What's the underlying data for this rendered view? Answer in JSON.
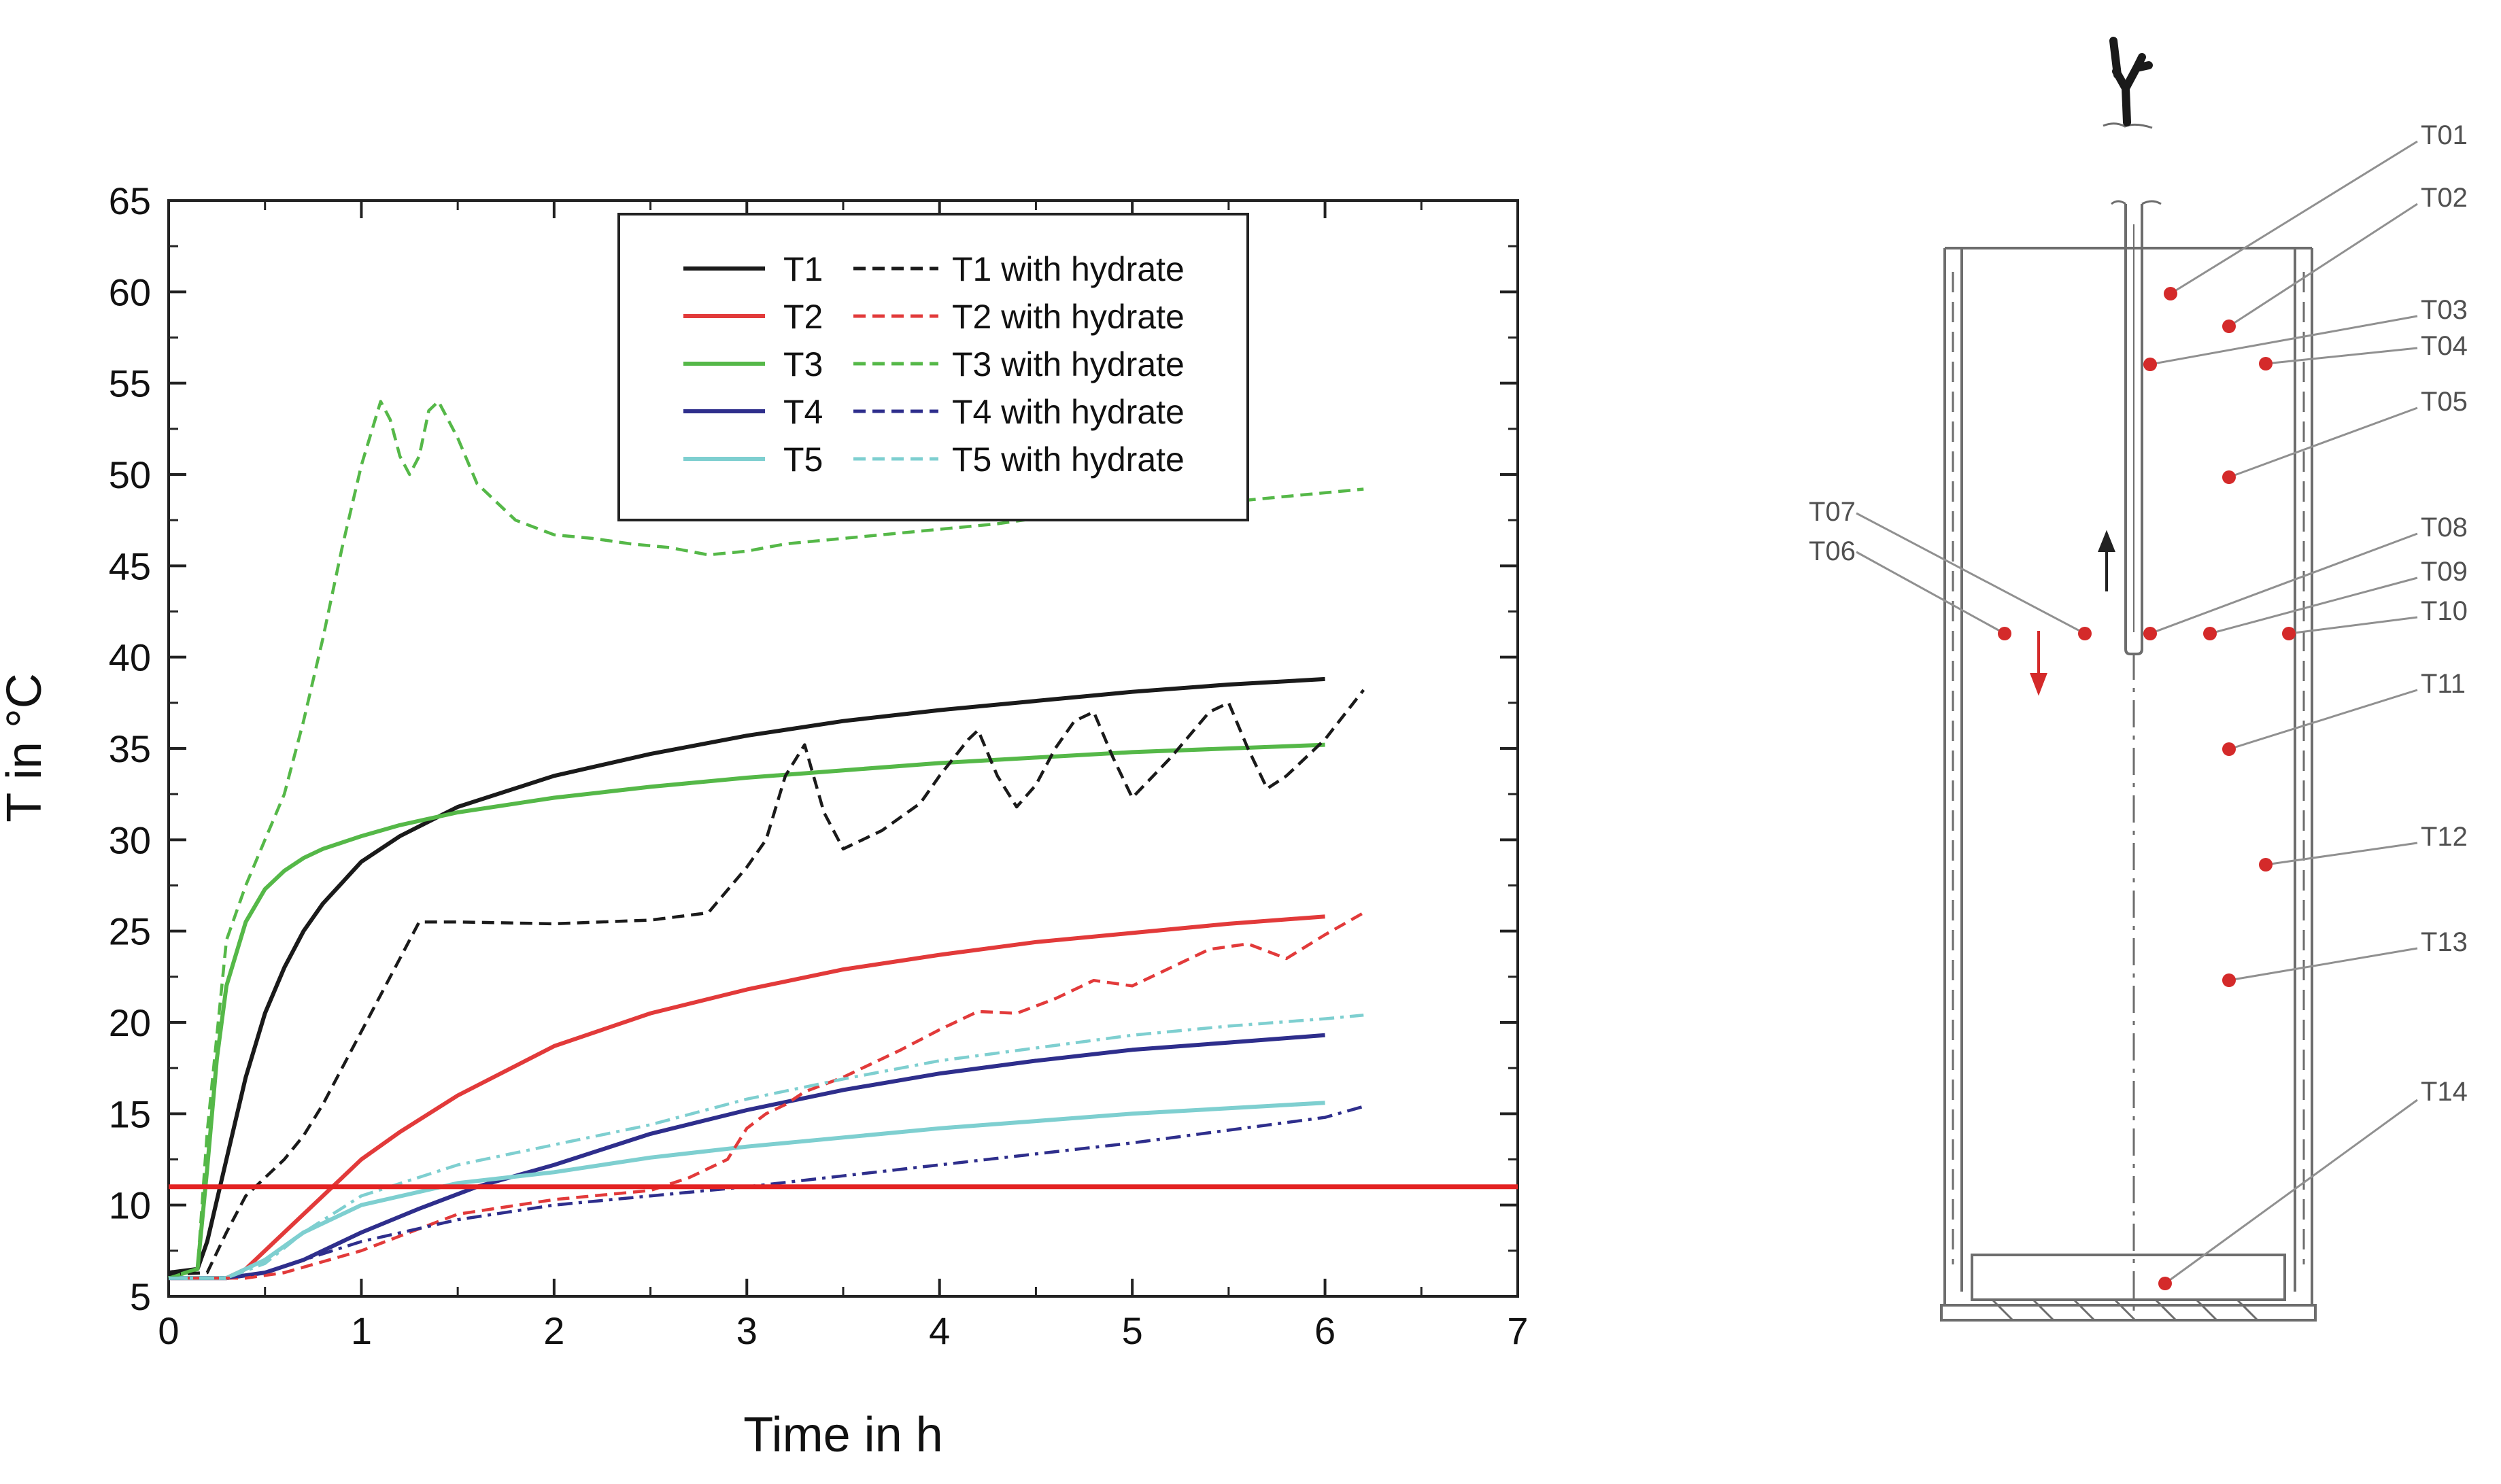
{
  "chart_data": {
    "type": "line",
    "title": "",
    "xlabel": "Time in h",
    "ylabel": "T in °C",
    "xlim": [
      0,
      7
    ],
    "ylim": [
      5,
      65
    ],
    "xticks": [
      0,
      1,
      2,
      3,
      4,
      5,
      6,
      7
    ],
    "yticks": [
      5,
      10,
      15,
      20,
      25,
      30,
      35,
      40,
      45,
      50,
      55,
      60,
      65
    ],
    "grid": false,
    "legend_position": "top-center",
    "legend": [
      {
        "id": "t1",
        "label": "T1",
        "dashed_label": "T1 with hydrate",
        "color": "#1a1a1a"
      },
      {
        "id": "t2",
        "label": "T2",
        "dashed_label": "T2 with hydrate",
        "color": "#e23a3a"
      },
      {
        "id": "t3",
        "label": "T3",
        "dashed_label": "T3 with hydrate",
        "color": "#55b848"
      },
      {
        "id": "t4",
        "label": "T4",
        "dashed_label": "T4 with hydrate",
        "color": "#2e2e8c"
      },
      {
        "id": "t5",
        "label": "T5",
        "dashed_label": "T5 with hydrate",
        "color": "#7ecfd0"
      }
    ],
    "reference_line": {
      "y": 11,
      "color": "#e32222"
    },
    "series": [
      {
        "name": "T1",
        "color": "#1a1a1a",
        "style": "solid",
        "x": [
          0,
          0.15,
          0.2,
          0.3,
          0.4,
          0.5,
          0.6,
          0.7,
          0.8,
          1.0,
          1.2,
          1.5,
          2.0,
          2.5,
          3.0,
          3.5,
          4.0,
          4.5,
          5.0,
          5.5,
          6.0
        ],
        "y": [
          6.3,
          6.5,
          8,
          12.5,
          17,
          20.5,
          23,
          25,
          26.5,
          28.8,
          30.2,
          31.8,
          33.5,
          34.7,
          35.7,
          36.5,
          37.1,
          37.6,
          38.1,
          38.5,
          38.8
        ]
      },
      {
        "name": "T2",
        "color": "#e23a3a",
        "style": "solid",
        "x": [
          0,
          0.3,
          0.4,
          0.5,
          0.7,
          0.9,
          1.0,
          1.2,
          1.5,
          2.0,
          2.5,
          3.0,
          3.5,
          4.0,
          4.5,
          5.0,
          5.5,
          6.0
        ],
        "y": [
          6,
          6,
          6.5,
          7.5,
          9.5,
          11.5,
          12.5,
          14,
          16,
          18.7,
          20.5,
          21.8,
          22.9,
          23.7,
          24.4,
          24.9,
          25.4,
          25.8
        ]
      },
      {
        "name": "T3",
        "color": "#55b848",
        "style": "solid",
        "x": [
          0,
          0.15,
          0.2,
          0.25,
          0.3,
          0.4,
          0.5,
          0.6,
          0.7,
          0.8,
          1.0,
          1.2,
          1.5,
          2.0,
          2.5,
          3.0,
          3.5,
          4.0,
          4.5,
          5.0,
          5.5,
          6.0
        ],
        "y": [
          6,
          6.5,
          12,
          18,
          22,
          25.5,
          27.3,
          28.3,
          29,
          29.5,
          30.2,
          30.8,
          31.5,
          32.3,
          32.9,
          33.4,
          33.8,
          34.2,
          34.5,
          34.8,
          35.0,
          35.2
        ]
      },
      {
        "name": "T4",
        "color": "#2e2e8c",
        "style": "solid",
        "x": [
          0,
          0.3,
          0.5,
          0.7,
          1.0,
          1.3,
          1.6,
          2.0,
          2.5,
          3.0,
          3.5,
          4.0,
          4.5,
          5.0,
          5.5,
          6.0
        ],
        "y": [
          6,
          6,
          6.3,
          7,
          8.5,
          9.8,
          11,
          12.2,
          13.9,
          15.2,
          16.3,
          17.2,
          17.9,
          18.5,
          18.9,
          19.3
        ]
      },
      {
        "name": "T5",
        "color": "#7ecfd0",
        "style": "solid",
        "x": [
          0,
          0.3,
          0.5,
          0.7,
          1.0,
          1.5,
          2.0,
          2.5,
          3.0,
          3.5,
          4.0,
          4.5,
          5.0,
          5.5,
          6.0
        ],
        "y": [
          6,
          6,
          7,
          8.5,
          10,
          11.2,
          11.8,
          12.6,
          13.2,
          13.7,
          14.2,
          14.6,
          15.0,
          15.3,
          15.6
        ]
      },
      {
        "name": "T1 with hydrate",
        "color": "#1a1a1a",
        "style": "dashed",
        "x": [
          0,
          0.2,
          0.3,
          0.4,
          0.5,
          0.6,
          0.7,
          0.8,
          1.0,
          1.2,
          1.3,
          1.5,
          2.0,
          2.5,
          2.8,
          3.0,
          3.1,
          3.2,
          3.3,
          3.4,
          3.5,
          3.7,
          3.9,
          4.0,
          4.15,
          4.2,
          4.3,
          4.4,
          4.5,
          4.6,
          4.7,
          4.8,
          4.9,
          5.0,
          5.2,
          5.4,
          5.5,
          5.6,
          5.7,
          5.8,
          6.0,
          6.2
        ],
        "y": [
          6.2,
          6.3,
          8.5,
          10.5,
          11.5,
          12.5,
          13.8,
          15.5,
          19.5,
          23.5,
          25.5,
          25.5,
          25.4,
          25.6,
          26,
          28.5,
          30,
          33.5,
          35.2,
          31.5,
          29.5,
          30.5,
          32,
          33.5,
          35.5,
          36,
          33.5,
          31.8,
          33,
          35,
          36.5,
          37,
          34.5,
          32.3,
          34.5,
          37,
          37.5,
          35,
          32.8,
          33.5,
          35.5,
          38.2
        ]
      },
      {
        "name": "T2 with hydrate",
        "color": "#e23a3a",
        "style": "dashed",
        "x": [
          0,
          0.4,
          0.6,
          1.0,
          1.5,
          2.0,
          2.5,
          2.7,
          2.9,
          3.0,
          3.1,
          3.2,
          3.3,
          3.5,
          3.8,
          4.0,
          4.2,
          4.4,
          4.6,
          4.8,
          5.0,
          5.2,
          5.4,
          5.6,
          5.8,
          6.0,
          6.2
        ],
        "y": [
          6,
          6,
          6.3,
          7.5,
          9.5,
          10.3,
          10.8,
          11.5,
          12.5,
          14.2,
          15,
          15.5,
          16.2,
          17,
          18.5,
          19.6,
          20.6,
          20.5,
          21.3,
          22.3,
          22,
          23,
          24,
          24.3,
          23.5,
          24.8,
          26
        ]
      },
      {
        "name": "T3 with hydrate",
        "color": "#55b848",
        "style": "dashed",
        "x": [
          0,
          0.15,
          0.2,
          0.3,
          0.4,
          0.5,
          0.6,
          0.7,
          0.8,
          0.9,
          1.0,
          1.1,
          1.15,
          1.2,
          1.25,
          1.3,
          1.35,
          1.4,
          1.45,
          1.5,
          1.6,
          1.7,
          1.8,
          2.0,
          2.2,
          2.4,
          2.6,
          2.8,
          3.0,
          3.2,
          3.5,
          3.8,
          4.0,
          4.3,
          4.5,
          5.0,
          5.5,
          5.8,
          6.0,
          6.2
        ],
        "y": [
          6,
          6.5,
          14,
          24.5,
          27.5,
          30,
          32.5,
          36.5,
          41,
          46,
          50.5,
          54,
          53,
          51,
          50,
          51,
          53.5,
          54,
          53,
          52,
          49.5,
          48.5,
          47.5,
          46.7,
          46.5,
          46.2,
          46,
          45.6,
          45.8,
          46.2,
          46.5,
          46.8,
          47,
          47.3,
          47.6,
          48,
          48.5,
          48.8,
          49,
          49.2
        ]
      },
      {
        "name": "T4 with hydrate",
        "color": "#2e2e8c",
        "style": "dashdot",
        "x": [
          0,
          0.3,
          0.5,
          0.7,
          1.0,
          1.5,
          2.0,
          2.5,
          3.0,
          3.5,
          4.0,
          4.5,
          5.0,
          5.5,
          6.0,
          6.2
        ],
        "y": [
          6,
          6,
          6.3,
          7,
          8,
          9.2,
          10.0,
          10.5,
          11.0,
          11.6,
          12.2,
          12.8,
          13.4,
          14.1,
          14.8,
          15.4
        ]
      },
      {
        "name": "T5 with hydrate",
        "color": "#7ecfd0",
        "style": "dashdot",
        "x": [
          0,
          0.3,
          0.5,
          0.7,
          1.0,
          1.5,
          2.0,
          2.5,
          3.0,
          3.5,
          4.0,
          4.5,
          5.0,
          5.5,
          6.0,
          6.2
        ],
        "y": [
          6,
          6,
          6.8,
          8.5,
          10.5,
          12.2,
          13.3,
          14.4,
          15.8,
          16.9,
          17.9,
          18.6,
          19.3,
          19.8,
          20.2,
          20.4
        ]
      }
    ]
  },
  "diagram": {
    "sensors": [
      {
        "label": "T01"
      },
      {
        "label": "T02"
      },
      {
        "label": "T03"
      },
      {
        "label": "T04"
      },
      {
        "label": "T05"
      },
      {
        "label": "T06"
      },
      {
        "label": "T07"
      },
      {
        "label": "T08"
      },
      {
        "label": "T09"
      },
      {
        "label": "T10"
      },
      {
        "label": "T11"
      },
      {
        "label": "T12"
      },
      {
        "label": "T13"
      },
      {
        "label": "T14"
      }
    ],
    "colors": {
      "sensor": "#d42a2a",
      "leader": "#909090",
      "vessel": "#6d6d6d",
      "label": "#505050",
      "arrow_down": "#d42a2a",
      "arrow_up": "#222222"
    }
  }
}
